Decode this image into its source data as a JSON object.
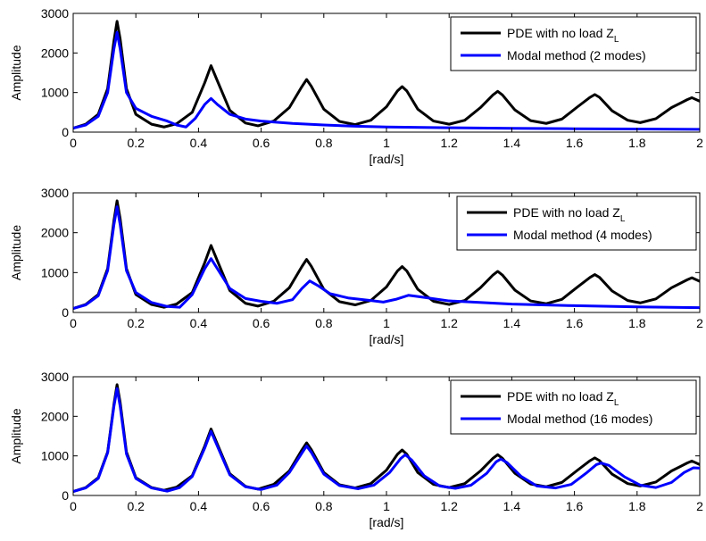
{
  "colors": {
    "pde": "#000000",
    "modal": "#0000ff",
    "axis": "#000000",
    "background": "#ffffff"
  },
  "chart_data": [
    {
      "type": "line",
      "xlabel": "[rad/s]",
      "ylabel": "Amplitude",
      "xlim": [
        0,
        2
      ],
      "ylim": [
        0,
        3000
      ],
      "xticks": [
        "0",
        "0.2",
        "0.4",
        "0.6",
        "0.8",
        "1",
        "1.2",
        "1.4",
        "1.6",
        "1.8",
        "2"
      ],
      "yticks": [
        "0",
        "1000",
        "2000",
        "3000"
      ],
      "grid": false,
      "legend_position": "top-right",
      "series": [
        {
          "name": "PDE with no load Z_L",
          "legend_main": "PDE with no load Z",
          "legend_sub": "L",
          "color": "#000000",
          "x": [
            0,
            0.04,
            0.08,
            0.11,
            0.13,
            0.14,
            0.15,
            0.17,
            0.2,
            0.25,
            0.29,
            0.33,
            0.38,
            0.42,
            0.44,
            0.46,
            0.5,
            0.55,
            0.59,
            0.64,
            0.69,
            0.73,
            0.745,
            0.76,
            0.8,
            0.85,
            0.9,
            0.95,
            1.0,
            1.035,
            1.05,
            1.065,
            1.1,
            1.15,
            1.2,
            1.25,
            1.3,
            1.34,
            1.355,
            1.37,
            1.41,
            1.46,
            1.51,
            1.56,
            1.61,
            1.65,
            1.665,
            1.68,
            1.72,
            1.77,
            1.81,
            1.86,
            1.91,
            1.96,
            1.975,
            2.0
          ],
          "y": [
            100,
            200,
            450,
            1100,
            2300,
            2800,
            2350,
            1100,
            450,
            200,
            130,
            210,
            500,
            1250,
            1680,
            1300,
            550,
            230,
            160,
            280,
            620,
            1150,
            1330,
            1160,
            580,
            270,
            190,
            300,
            640,
            1040,
            1150,
            1040,
            580,
            280,
            200,
            300,
            620,
            940,
            1030,
            940,
            560,
            290,
            220,
            330,
            640,
            880,
            950,
            880,
            540,
            300,
            240,
            340,
            620,
            820,
            870,
            780
          ]
        },
        {
          "name": "Modal method (2 modes)",
          "color": "#0000ff",
          "x": [
            0,
            0.04,
            0.08,
            0.11,
            0.13,
            0.14,
            0.15,
            0.17,
            0.2,
            0.25,
            0.3,
            0.33,
            0.36,
            0.39,
            0.42,
            0.44,
            0.46,
            0.5,
            0.55,
            0.6,
            0.7,
            0.8,
            0.9,
            1.0,
            1.2,
            1.4,
            1.6,
            1.8,
            2.0
          ],
          "y": [
            100,
            180,
            400,
            1000,
            2100,
            2520,
            2100,
            1000,
            600,
            400,
            280,
            180,
            130,
            350,
            700,
            850,
            700,
            450,
            330,
            280,
            220,
            180,
            150,
            130,
            110,
            95,
            85,
            78,
            70
          ]
        }
      ]
    },
    {
      "type": "line",
      "xlabel": "[rad/s]",
      "ylabel": "Amplitude",
      "xlim": [
        0,
        2
      ],
      "ylim": [
        0,
        3000
      ],
      "xticks": [
        "0",
        "0.2",
        "0.4",
        "0.6",
        "0.8",
        "1",
        "1.2",
        "1.4",
        "1.6",
        "1.8",
        "2"
      ],
      "yticks": [
        "0",
        "1000",
        "2000",
        "3000"
      ],
      "grid": false,
      "legend_position": "top-right",
      "series": [
        {
          "name": "PDE with no load Z_L",
          "legend_main": "PDE with no load Z",
          "legend_sub": "L",
          "color": "#000000",
          "x": [
            0,
            0.04,
            0.08,
            0.11,
            0.13,
            0.14,
            0.15,
            0.17,
            0.2,
            0.25,
            0.29,
            0.33,
            0.38,
            0.42,
            0.44,
            0.46,
            0.5,
            0.55,
            0.59,
            0.64,
            0.69,
            0.73,
            0.745,
            0.76,
            0.8,
            0.85,
            0.9,
            0.95,
            1.0,
            1.035,
            1.05,
            1.065,
            1.1,
            1.15,
            1.2,
            1.25,
            1.3,
            1.34,
            1.355,
            1.37,
            1.41,
            1.46,
            1.51,
            1.56,
            1.61,
            1.65,
            1.665,
            1.68,
            1.72,
            1.77,
            1.81,
            1.86,
            1.91,
            1.96,
            1.975,
            2.0
          ],
          "y": [
            100,
            200,
            450,
            1100,
            2300,
            2800,
            2350,
            1100,
            450,
            200,
            130,
            210,
            500,
            1250,
            1680,
            1300,
            550,
            230,
            160,
            280,
            620,
            1150,
            1330,
            1160,
            580,
            270,
            190,
            300,
            640,
            1040,
            1150,
            1040,
            580,
            280,
            200,
            300,
            620,
            940,
            1030,
            940,
            560,
            290,
            220,
            330,
            640,
            880,
            950,
            880,
            540,
            300,
            240,
            340,
            620,
            820,
            870,
            780
          ]
        },
        {
          "name": "Modal method (4 modes)",
          "color": "#0000ff",
          "x": [
            0,
            0.04,
            0.08,
            0.11,
            0.13,
            0.14,
            0.15,
            0.17,
            0.2,
            0.25,
            0.3,
            0.34,
            0.38,
            0.42,
            0.44,
            0.46,
            0.5,
            0.55,
            0.6,
            0.65,
            0.7,
            0.73,
            0.755,
            0.78,
            0.82,
            0.88,
            0.95,
            0.99,
            1.03,
            1.07,
            1.1,
            1.2,
            1.4,
            1.6,
            1.8,
            2.0
          ],
          "y": [
            100,
            190,
            420,
            1050,
            2200,
            2650,
            2200,
            1050,
            500,
            250,
            150,
            130,
            450,
            1100,
            1350,
            1100,
            600,
            350,
            280,
            230,
            320,
            600,
            790,
            680,
            470,
            360,
            300,
            260,
            330,
            430,
            400,
            290,
            210,
            170,
            140,
            120
          ]
        }
      ]
    },
    {
      "type": "line",
      "xlabel": "[rad/s]",
      "ylabel": "Amplitude",
      "xlim": [
        0,
        2
      ],
      "ylim": [
        0,
        3000
      ],
      "xticks": [
        "0",
        "0.2",
        "0.4",
        "0.6",
        "0.8",
        "1",
        "1.2",
        "1.4",
        "1.6",
        "1.8",
        "2"
      ],
      "yticks": [
        "0",
        "1000",
        "2000",
        "3000"
      ],
      "grid": false,
      "legend_position": "top-right",
      "series": [
        {
          "name": "PDE with no load Z_L",
          "legend_main": "PDE with no load Z",
          "legend_sub": "L",
          "color": "#000000",
          "x": [
            0,
            0.04,
            0.08,
            0.11,
            0.13,
            0.14,
            0.15,
            0.17,
            0.2,
            0.25,
            0.29,
            0.33,
            0.38,
            0.42,
            0.44,
            0.46,
            0.5,
            0.55,
            0.59,
            0.64,
            0.69,
            0.73,
            0.745,
            0.76,
            0.8,
            0.85,
            0.9,
            0.95,
            1.0,
            1.035,
            1.05,
            1.065,
            1.1,
            1.15,
            1.2,
            1.25,
            1.3,
            1.34,
            1.355,
            1.37,
            1.41,
            1.46,
            1.51,
            1.56,
            1.61,
            1.65,
            1.665,
            1.68,
            1.72,
            1.77,
            1.81,
            1.86,
            1.91,
            1.96,
            1.975,
            2.0
          ],
          "y": [
            100,
            200,
            450,
            1100,
            2300,
            2800,
            2350,
            1100,
            450,
            200,
            130,
            210,
            500,
            1250,
            1680,
            1300,
            550,
            230,
            160,
            280,
            620,
            1150,
            1330,
            1160,
            580,
            270,
            190,
            300,
            640,
            1040,
            1150,
            1040,
            580,
            280,
            200,
            300,
            620,
            940,
            1030,
            940,
            560,
            290,
            220,
            330,
            640,
            880,
            950,
            880,
            540,
            300,
            240,
            340,
            620,
            820,
            870,
            780
          ]
        },
        {
          "name": "Modal method (16 modes)",
          "color": "#0000ff",
          "x": [
            0,
            0.04,
            0.08,
            0.11,
            0.13,
            0.14,
            0.15,
            0.17,
            0.2,
            0.25,
            0.3,
            0.34,
            0.38,
            0.42,
            0.44,
            0.46,
            0.5,
            0.55,
            0.6,
            0.65,
            0.69,
            0.73,
            0.745,
            0.76,
            0.8,
            0.85,
            0.91,
            0.96,
            1.01,
            1.045,
            1.06,
            1.08,
            1.12,
            1.17,
            1.22,
            1.27,
            1.32,
            1.35,
            1.365,
            1.385,
            1.43,
            1.48,
            1.54,
            1.59,
            1.64,
            1.67,
            1.685,
            1.71,
            1.76,
            1.81,
            1.86,
            1.91,
            1.95,
            1.98,
            2.0
          ],
          "y": [
            100,
            190,
            430,
            1080,
            2250,
            2700,
            2250,
            1050,
            430,
            190,
            110,
            200,
            480,
            1200,
            1620,
            1250,
            520,
            220,
            150,
            260,
            580,
            1070,
            1250,
            1090,
            540,
            250,
            170,
            260,
            580,
            930,
            1030,
            900,
            500,
            240,
            180,
            260,
            560,
            850,
            920,
            830,
            480,
            240,
            190,
            280,
            580,
            780,
            820,
            760,
            470,
            260,
            200,
            330,
            580,
            700,
            690
          ]
        }
      ]
    }
  ]
}
